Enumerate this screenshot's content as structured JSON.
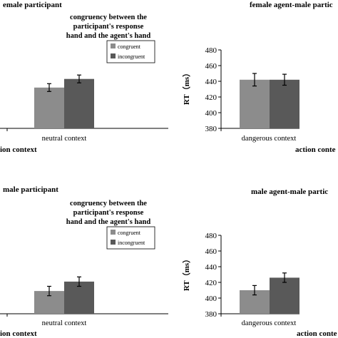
{
  "colors": {
    "congruent": "#8c8c8c",
    "incongruent": "#595959"
  },
  "annotation_lines": [
    "congruency between the",
    "participant's response",
    "hand and the agent's hand"
  ],
  "chart_data": [
    {
      "id": "top-left",
      "type": "bar",
      "title": "emale participant",
      "categories": [
        "neutral context"
      ],
      "series": [
        {
          "name": "congruent",
          "values": [
            432
          ]
        },
        {
          "name": "incongruent",
          "values": [
            443
          ]
        }
      ],
      "errors": [
        [
          5
        ],
        [
          5
        ]
      ],
      "ylim": [
        380,
        480
      ],
      "yticks": [],
      "xlabel": "ion context",
      "ylabel": "",
      "legend": "top-right"
    },
    {
      "id": "top-right",
      "type": "bar",
      "title": "female agent-male partic",
      "categories": [
        "dangerous context"
      ],
      "series": [
        {
          "name": "congruent",
          "values": [
            442
          ]
        },
        {
          "name": "incongruent",
          "values": [
            442
          ]
        }
      ],
      "errors": [
        [
          8
        ],
        [
          7
        ]
      ],
      "ylim": [
        380,
        480
      ],
      "yticks": [
        "380",
        "400",
        "420",
        "440",
        "460",
        "480"
      ],
      "xlabel": "action conte",
      "ylabel": "RT（ms）"
    },
    {
      "id": "bottom-left",
      "type": "bar",
      "title": "male participant",
      "categories": [
        "neutral context"
      ],
      "series": [
        {
          "name": "congruent",
          "values": [
            409
          ]
        },
        {
          "name": "incongruent",
          "values": [
            421
          ]
        }
      ],
      "errors": [
        [
          6
        ],
        [
          6
        ]
      ],
      "ylim": [
        380,
        480
      ],
      "yticks": [],
      "xlabel": "ion context",
      "ylabel": "",
      "legend": "top-right"
    },
    {
      "id": "bottom-right",
      "type": "bar",
      "title": "male agent-male partic",
      "categories": [
        "dangerous context"
      ],
      "series": [
        {
          "name": "congruent",
          "values": [
            410
          ]
        },
        {
          "name": "incongruent",
          "values": [
            426
          ]
        }
      ],
      "errors": [
        [
          6
        ],
        [
          6
        ]
      ],
      "ylim": [
        380,
        480
      ],
      "yticks": [
        "380",
        "400",
        "420",
        "440",
        "460",
        "480"
      ],
      "xlabel": "action conte",
      "ylabel": "RT（ms）"
    }
  ]
}
